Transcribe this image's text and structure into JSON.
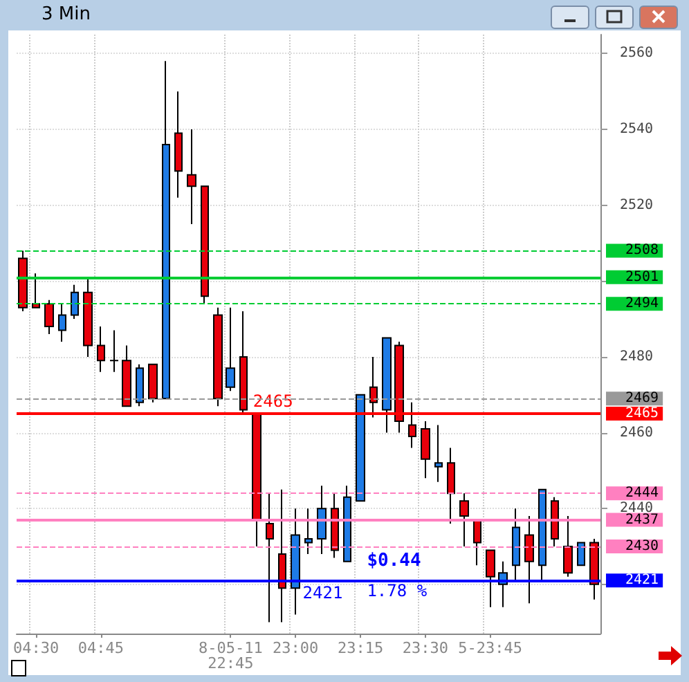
{
  "chart_data": {
    "type": "candlestick",
    "title": "3 Min",
    "categories": [
      null,
      "04:30",
      null,
      null,
      null,
      null,
      "04:45",
      null,
      null,
      null,
      null,
      null,
      null,
      null,
      null,
      null,
      "8-05-11 22:45",
      null,
      null,
      null,
      null,
      "23:00",
      null,
      null,
      null,
      null,
      "23:15",
      null,
      null,
      null,
      null,
      "23:30",
      null,
      null,
      null,
      null,
      "5-23:45",
      null,
      null,
      null,
      null,
      null,
      null,
      null,
      null
    ],
    "series": [
      {
        "colors": [
          "#e8000b",
          "#e8000b",
          "#e8000b",
          "#1e7be6",
          "#1e7be6",
          "#e8000b",
          "#e8000b",
          "#000000",
          "#e8000b",
          "#1e7be6",
          "#e8000b",
          "#1e7be6",
          "#e8000b",
          "#e8000b",
          "#e8000b",
          "#e8000b",
          "#1e7be6",
          "#e8000b",
          "#e8000b",
          "#e8000b",
          "#e8000b",
          "#1e7be6",
          "#1e7be6",
          "#1e7be6",
          "#e8000b",
          "#1e7be6",
          "#1e7be6",
          "#e8000b",
          "#1e7be6",
          "#e8000b",
          "#e8000b",
          "#e8000b",
          "#1e7be6",
          "#e8000b",
          "#e8000b",
          "#e8000b",
          "#e8000b",
          "#1e7be6",
          "#1e7be6",
          "#e8000b",
          "#1e7be6",
          "#e8000b",
          "#e8000b",
          "#1e7be6",
          "#e8000b"
        ],
        "ohlc": [
          [
            2506,
            2508,
            2492,
            2493
          ],
          [
            2494,
            2502,
            2493,
            2493
          ],
          [
            2494,
            2495,
            2486,
            2488
          ],
          [
            2487,
            2494,
            2484,
            2491
          ],
          [
            2491,
            2499,
            2490,
            2497
          ],
          [
            2497,
            2501,
            2480,
            2483
          ],
          [
            2483,
            2488,
            2476,
            2479
          ],
          [
            2479,
            2487,
            2476,
            2479
          ],
          [
            2479,
            2483,
            2467,
            2467
          ],
          [
            2468,
            2478,
            2467,
            2477
          ],
          [
            2478,
            2478,
            2468,
            2469
          ],
          [
            2469,
            2558,
            2469,
            2536
          ],
          [
            2539,
            2550,
            2522,
            2529
          ],
          [
            2528,
            2540,
            2515,
            2525
          ],
          [
            2525,
            2525,
            2494,
            2496
          ],
          [
            2491,
            2493,
            2467,
            2469
          ],
          [
            2472,
            2493,
            2471,
            2477
          ],
          [
            2480,
            2492,
            2465,
            2466
          ],
          [
            2465,
            2465,
            2430,
            2437
          ],
          [
            2436,
            2444,
            2410,
            2432
          ],
          [
            2428,
            2445,
            2410,
            2419
          ],
          [
            2419,
            2440,
            2412,
            2433
          ],
          [
            2431,
            2440,
            2428,
            2432
          ],
          [
            2432,
            2446,
            2428,
            2440
          ],
          [
            2440,
            2444,
            2427,
            2429
          ],
          [
            2426,
            2446,
            2426,
            2443
          ],
          [
            2442,
            2470,
            2442,
            2470
          ],
          [
            2472,
            2480,
            2464,
            2468
          ],
          [
            2466,
            2485,
            2460,
            2485
          ],
          [
            2483,
            2484,
            2460,
            2463
          ],
          [
            2462,
            2468,
            2456,
            2459
          ],
          [
            2461,
            2463,
            2448,
            2453
          ],
          [
            2451,
            2462,
            2447,
            2452
          ],
          [
            2452,
            2456,
            2436,
            2444
          ],
          [
            2442,
            2444,
            2430,
            2438
          ],
          [
            2437,
            2437,
            2425,
            2431
          ],
          [
            2429,
            2429,
            2414,
            2422
          ],
          [
            2420,
            2426,
            2414,
            2423
          ],
          [
            2425,
            2440,
            2421,
            2435
          ],
          [
            2433,
            2438,
            2415,
            2426
          ],
          [
            2425,
            2445,
            2421,
            2445
          ],
          [
            2442,
            2443,
            2430,
            2432
          ],
          [
            2430,
            2438,
            2422,
            2423
          ],
          [
            2425,
            2431,
            2425,
            2431
          ],
          [
            2431,
            2432,
            2416,
            2420
          ]
        ]
      }
    ],
    "ylim": [
      2407,
      2565
    ],
    "yticks": [
      {
        "value": 2420,
        "label": null
      },
      2440,
      2460,
      2480,
      {
        "value": 2500,
        "label": null
      },
      2520,
      2540,
      2560
    ],
    "grid": true,
    "ref_lines": [
      {
        "axis": "y",
        "value": 2508,
        "label": "2508",
        "color": "#00cc33",
        "line_style": "dashed"
      },
      {
        "axis": "y",
        "value": 2501,
        "label": "2501",
        "color": "#00cc33",
        "line_style": "solid"
      },
      {
        "axis": "y",
        "value": 2494,
        "label": "2494",
        "color": "#00cc33",
        "line_style": "dashed"
      },
      {
        "axis": "y",
        "value": 2469,
        "label": "2469",
        "color": "#999999",
        "line_style": "dashed"
      },
      {
        "axis": "y",
        "value": 2465,
        "label": "2465",
        "color": "#ff0000",
        "line_style": "solid"
      },
      {
        "axis": "y",
        "value": 2444,
        "label": "2444",
        "color": "#ff80c0",
        "line_style": "dashed"
      },
      {
        "axis": "y",
        "value": 2437,
        "label": "2437",
        "color": "#ff80c0",
        "line_style": "solid"
      },
      {
        "axis": "y",
        "value": 2430,
        "label": "2430",
        "color": "#ff80c0",
        "line_style": "dashed"
      },
      {
        "axis": "y",
        "value": 2421,
        "label": "2421",
        "color": "#0000ff",
        "line_style": "solid"
      }
    ],
    "annotations": [
      {
        "text": "2465",
        "y": 2465
      },
      {
        "text": "2421",
        "y": 2421
      },
      "$0.44",
      "1.78 %"
    ]
  }
}
